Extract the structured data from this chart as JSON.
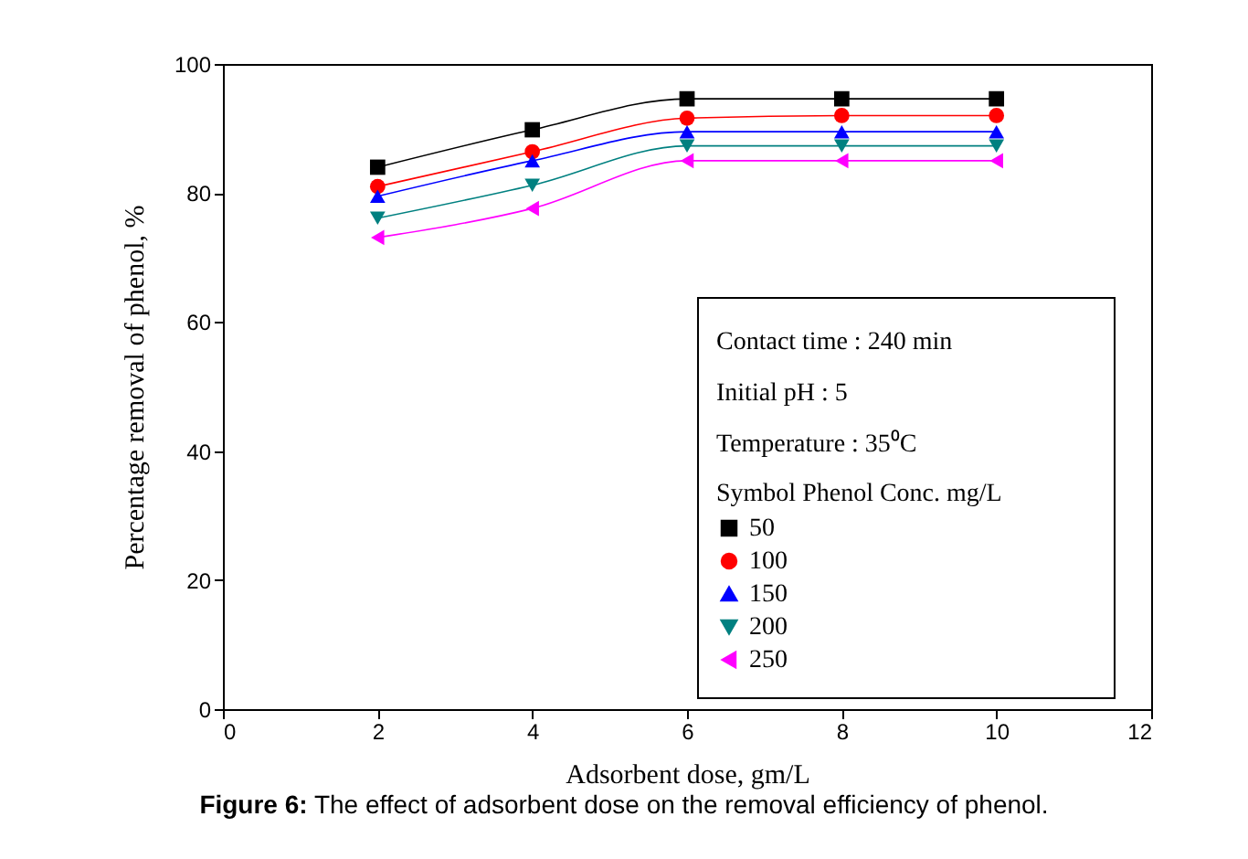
{
  "chart_data": {
    "type": "line",
    "xlabel": "Adsorbent dose, gm/L",
    "ylabel": "Percentage removal of phenol, %",
    "legend_title": "Symbol  Phenol Conc. mg/L",
    "legend": "bottom right",
    "x": [
      2,
      4,
      6,
      8,
      10
    ],
    "xlim": [
      0,
      12
    ],
    "xticks": [
      0,
      2,
      4,
      6,
      8,
      10,
      12
    ],
    "ylim": [
      0,
      100
    ],
    "yticks": [
      0,
      20,
      40,
      60,
      80,
      100
    ],
    "grid": false,
    "line_style": "solid",
    "annotations": [
      "Contact time : 240 min",
      "Initial pH : 5",
      "Temperature : 35⁰C",
      "Figure 6: The effect of adsorbent dose on the removal efficiency of phenol."
    ],
    "series": [
      {
        "name": "50",
        "color": "#000000",
        "marker": "square",
        "values": [
          84,
          89.8,
          94.6,
          94.6,
          94.6
        ]
      },
      {
        "name": "100",
        "color": "#ff0000",
        "marker": "circle",
        "values": [
          81,
          86.4,
          91.6,
          92,
          92
        ]
      },
      {
        "name": "150",
        "color": "#0000ff",
        "marker": "triangle",
        "values": [
          79.5,
          85,
          89.5,
          89.5,
          89.5
        ]
      },
      {
        "name": "200",
        "color": "#008080",
        "marker": "triangle-down",
        "values": [
          76.1,
          81.2,
          87.3,
          87.3,
          87.3
        ]
      },
      {
        "name": "250",
        "color": "#ff00ff",
        "marker": "triangle-left",
        "values": [
          73.1,
          77.6,
          85,
          85,
          85
        ]
      }
    ]
  }
}
